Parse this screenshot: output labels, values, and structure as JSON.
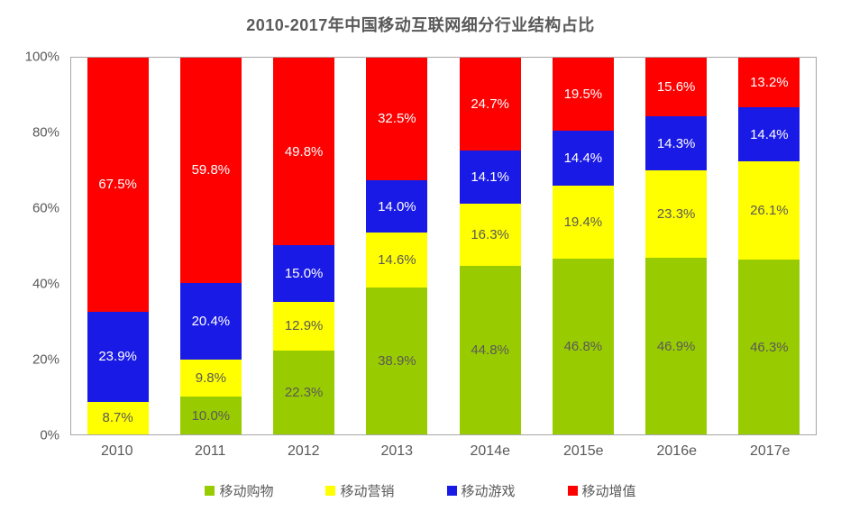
{
  "chart_data": {
    "type": "bar",
    "stacked": true,
    "title": "2010-2017年中国移动互联网细分行业结构占比",
    "categories": [
      "2010",
      "2011",
      "2012",
      "2013",
      "2014e",
      "2015e",
      "2016e",
      "2017e"
    ],
    "series": [
      {
        "key": "mobile-shopping",
        "name": "移动购物",
        "color": "#99CC00",
        "label_color": "#595959",
        "values": [
          0,
          10.0,
          22.3,
          38.9,
          44.8,
          46.8,
          46.9,
          46.3
        ],
        "labels": [
          "",
          "10.0%",
          "22.3%",
          "38.9%",
          "44.8%",
          "46.8%",
          "46.9%",
          "46.3%"
        ]
      },
      {
        "key": "mobile-marketing",
        "name": "移动营销",
        "color": "#FFFF00",
        "label_color": "#595959",
        "values": [
          8.7,
          9.8,
          12.9,
          14.6,
          16.3,
          19.4,
          23.3,
          26.1
        ],
        "labels": [
          "8.7%",
          "9.8%",
          "12.9%",
          "14.6%",
          "16.3%",
          "19.4%",
          "23.3%",
          "26.1%"
        ]
      },
      {
        "key": "mobile-gaming",
        "name": "移动游戏",
        "color": "#1A1AE6",
        "label_color": "#FFFFFF",
        "values": [
          23.9,
          20.4,
          15.0,
          14.0,
          14.1,
          14.4,
          14.3,
          14.4
        ],
        "labels": [
          "23.9%",
          "20.4%",
          "15.0%",
          "14.0%",
          "14.1%",
          "14.4%",
          "14.3%",
          "14.4%"
        ]
      },
      {
        "key": "mobile-value-added",
        "name": "移动增值",
        "color": "#FE0000",
        "label_color": "#FFFFFF",
        "values": [
          67.5,
          59.8,
          49.8,
          32.5,
          24.7,
          19.5,
          15.6,
          13.2
        ],
        "labels": [
          "67.5%",
          "59.8%",
          "49.8%",
          "32.5%",
          "24.7%",
          "19.5%",
          "15.6%",
          "13.2%"
        ]
      }
    ],
    "y_ticks": [
      "100%",
      "80%",
      "60%",
      "40%",
      "20%",
      "0%"
    ],
    "ylim": [
      0,
      100
    ],
    "grid": false,
    "legend_position": "bottom",
    "colors": {
      "axis_border": "#A6A6A6",
      "axis_text": "#595959",
      "title_text": "#595959",
      "label_on_dark": "#FFFFFF"
    }
  }
}
